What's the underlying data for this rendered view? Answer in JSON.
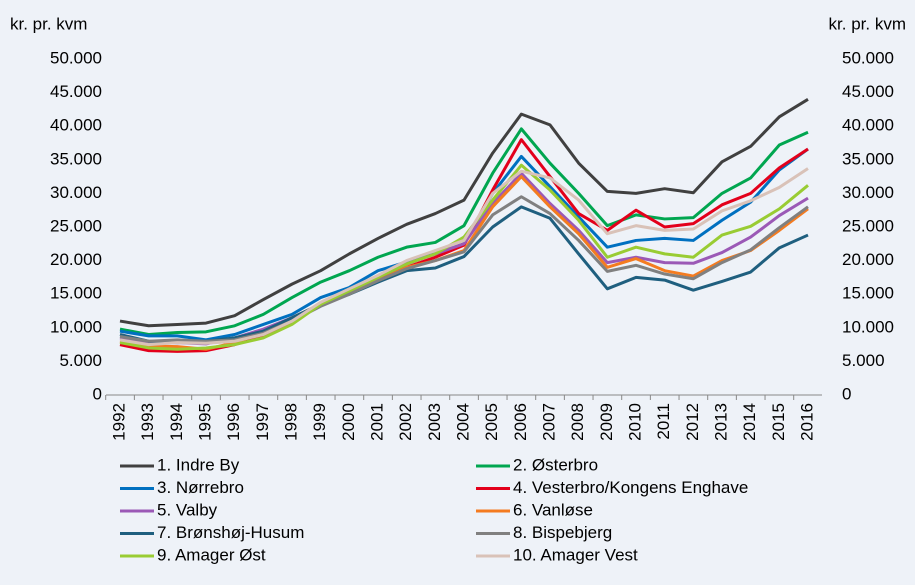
{
  "chart_data": {
    "type": "line",
    "ylabel": "kr. pr. kvm",
    "y2label": "kr. pr. kvm",
    "x": [
      1992,
      1993,
      1994,
      1995,
      1996,
      1997,
      1998,
      1999,
      2000,
      2001,
      2002,
      2003,
      2004,
      2005,
      2006,
      2007,
      2008,
      2009,
      2010,
      2011,
      2012,
      2013,
      2014,
      2015,
      2016
    ],
    "xlim": [
      1992,
      2016
    ],
    "ylim": [
      0,
      50000
    ],
    "yticks": [
      0,
      {
        "value": 5000,
        "label": "5.000"
      },
      {
        "value": 10000,
        "label": "10.000"
      },
      {
        "value": 15000,
        "label": "15.000"
      },
      {
        "value": 20000,
        "label": "20.000"
      },
      {
        "value": 25000,
        "label": "25.000"
      },
      {
        "value": 30000,
        "label": "30.000"
      },
      {
        "value": 35000,
        "label": "35.000"
      },
      {
        "value": 40000,
        "label": "40.000"
      },
      {
        "value": 45000,
        "label": "45.000"
      },
      {
        "value": 50000,
        "label": "50.000"
      }
    ],
    "y2lim": [
      0,
      50000
    ],
    "y2ticks": [
      0,
      {
        "value": 5000,
        "label": "5.000"
      },
      {
        "value": 10000,
        "label": "10.000"
      },
      {
        "value": 15000,
        "label": "15.000"
      },
      {
        "value": 20000,
        "label": "20.000"
      },
      {
        "value": 25000,
        "label": "25.000"
      },
      {
        "value": 30000,
        "label": "30.000"
      },
      {
        "value": 35000,
        "label": "35.000"
      },
      {
        "value": 40000,
        "label": "40.000"
      },
      {
        "value": 45000,
        "label": "45.000"
      },
      {
        "value": 50000,
        "label": "50.000"
      }
    ],
    "grid": false,
    "legend": "bottom",
    "series": [
      {
        "name": "1. Indre By",
        "color": "#404040",
        "values": [
          11000,
          10300,
          10500,
          10700,
          11800,
          14200,
          16500,
          18500,
          21000,
          23300,
          25400,
          27000,
          29000,
          36000,
          41800,
          40200,
          34500,
          30300,
          30000,
          30700,
          30100,
          34700,
          37000,
          41400,
          44000
        ]
      },
      {
        "name": "2. Østerbro",
        "color": "#00a650",
        "values": [
          9800,
          9000,
          9300,
          9400,
          10300,
          12000,
          14500,
          16800,
          18500,
          20500,
          22000,
          22700,
          25200,
          33000,
          39600,
          34500,
          30000,
          25200,
          26800,
          26200,
          26400,
          30000,
          32300,
          37200,
          39100
        ]
      },
      {
        "name": "3. Nørrebro",
        "color": "#0070c0",
        "values": [
          9500,
          8800,
          8800,
          8200,
          9000,
          10500,
          12000,
          14500,
          16000,
          18500,
          19800,
          21000,
          22500,
          30000,
          35500,
          31000,
          26500,
          22000,
          23000,
          23300,
          23000,
          26000,
          28700,
          33500,
          36600
        ]
      },
      {
        "name": "4. Vesterbro/Kongens Enghave",
        "color": "#e3001b",
        "values": [
          7500,
          6600,
          6500,
          6600,
          7500,
          8700,
          10700,
          13500,
          15500,
          17500,
          19000,
          20500,
          22300,
          30500,
          38000,
          32500,
          27000,
          24500,
          27500,
          25000,
          25500,
          28300,
          30000,
          33800,
          36600
        ]
      },
      {
        "name": "5. Valby",
        "color": "#9b59b6",
        "values": [
          8500,
          7700,
          7800,
          7600,
          8500,
          9800,
          11500,
          13500,
          15500,
          17500,
          19500,
          21000,
          22500,
          28500,
          33000,
          28500,
          24500,
          19700,
          20500,
          19700,
          19600,
          21200,
          23500,
          26700,
          29300
        ]
      },
      {
        "name": "6. Vanløse",
        "color": "#f47b20",
        "values": [
          8000,
          7300,
          7200,
          6800,
          7800,
          9300,
          11500,
          13500,
          15000,
          17000,
          19000,
          20000,
          21500,
          28000,
          32500,
          28000,
          24000,
          19000,
          20300,
          18500,
          17700,
          20000,
          21500,
          24500,
          27700
        ]
      },
      {
        "name": "7. Brønshøj-Husum",
        "color": "#1f5f7f",
        "values": [
          9000,
          8000,
          7800,
          8000,
          8500,
          9500,
          11500,
          13500,
          15000,
          16800,
          18500,
          18900,
          20600,
          25000,
          28000,
          26300,
          21000,
          15800,
          17500,
          17100,
          15600,
          16900,
          18300,
          21900,
          23800
        ]
      },
      {
        "name": "8. Bispebjerg",
        "color": "#808080",
        "values": [
          8700,
          8000,
          8200,
          8000,
          8200,
          9200,
          11000,
          13200,
          15000,
          17000,
          18800,
          20000,
          21300,
          26800,
          29500,
          27000,
          23000,
          18400,
          19300,
          18000,
          17300,
          19700,
          21600,
          24900,
          28000
        ]
      },
      {
        "name": "9. Amager Øst",
        "color": "#99cc33",
        "values": [
          7800,
          7000,
          6800,
          7000,
          7500,
          8500,
          10500,
          13500,
          15500,
          17500,
          19500,
          21000,
          23500,
          29000,
          34200,
          30500,
          26000,
          20500,
          22000,
          21000,
          20500,
          23800,
          25100,
          27700,
          31200
        ]
      },
      {
        "name": "10. Amager Vest",
        "color": "#d9c2b8",
        "values": [
          8200,
          7500,
          7800,
          7700,
          8000,
          9000,
          11000,
          13800,
          15800,
          17800,
          20000,
          21500,
          23000,
          30000,
          33300,
          32300,
          29000,
          24000,
          25200,
          24500,
          24700,
          27400,
          28900,
          30900,
          33700
        ]
      }
    ]
  }
}
